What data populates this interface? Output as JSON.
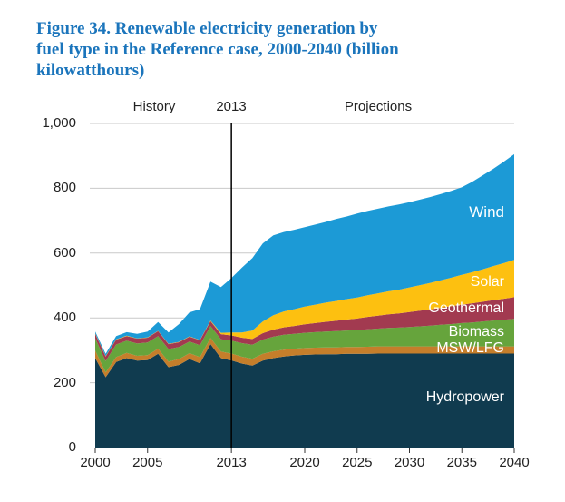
{
  "title_lines": [
    "Figure 34. Renewable electricity generation by",
    "fuel type in the Reference case, 2000-2040 (billion",
    "kilowatthours)"
  ],
  "header_labels": {
    "history": "History",
    "divider_year": "2013",
    "projections": "Projections"
  },
  "colors": {
    "title_blue": "#1b75bc",
    "gridline": "#c9c9c9",
    "axis": "#333333",
    "divider_line": "#000000",
    "label_text": "#222222",
    "area_label_text": "#ffffff"
  },
  "chart_data": {
    "type": "area",
    "stacked": true,
    "title": "Renewable electricity generation by fuel type in the Reference case, 2000-2040",
    "units": "billion kilowatthours",
    "xlim": [
      2000,
      2040
    ],
    "ylim": [
      0,
      1000
    ],
    "grid": "horizontal",
    "annotation_line_x": 2013,
    "x_ticks": [
      2000,
      2005,
      2013,
      2020,
      2025,
      2030,
      2035,
      2040
    ],
    "x_tick_labels": [
      "2000",
      "2005",
      "2013",
      "2020",
      "2025",
      "2030",
      "2035",
      "2040"
    ],
    "y_ticks": [
      0,
      200,
      400,
      600,
      800,
      1000
    ],
    "y_tick_labels": [
      "0",
      "200",
      "400",
      "600",
      "800",
      "1,000"
    ],
    "x": [
      2000,
      2001,
      2002,
      2003,
      2004,
      2005,
      2006,
      2007,
      2008,
      2009,
      2010,
      2011,
      2012,
      2013,
      2014,
      2015,
      2016,
      2017,
      2018,
      2019,
      2020,
      2021,
      2022,
      2023,
      2024,
      2025,
      2026,
      2027,
      2028,
      2029,
      2030,
      2031,
      2032,
      2033,
      2034,
      2035,
      2036,
      2037,
      2038,
      2039,
      2040
    ],
    "series": [
      {
        "name": "Hydropower",
        "color": "#103b4f",
        "values": [
          276,
          217,
          264,
          276,
          268,
          270,
          289,
          248,
          255,
          273,
          260,
          319,
          276,
          269,
          259,
          253,
          268,
          276,
          281,
          284,
          286,
          287,
          288,
          288,
          289,
          289,
          289,
          290,
          290,
          290,
          290,
          290,
          290,
          290,
          290,
          290,
          290,
          290,
          290,
          290,
          290
        ]
      },
      {
        "name": "MSW/LFG",
        "color": "#c57e2b",
        "values": [
          23,
          15,
          15,
          16,
          15,
          15,
          16,
          17,
          18,
          18,
          19,
          19,
          20,
          21,
          21,
          21,
          21,
          21,
          21,
          21,
          21,
          21,
          21,
          21,
          21,
          21,
          22,
          22,
          22,
          22,
          22,
          22,
          22,
          22,
          22,
          22,
          22,
          22,
          22,
          22,
          22
        ]
      },
      {
        "name": "Biomass",
        "color": "#66a43c",
        "values": [
          38,
          35,
          39,
          38,
          38,
          39,
          39,
          39,
          37,
          36,
          37,
          37,
          38,
          40,
          42,
          43,
          44,
          45,
          46,
          46,
          47,
          48,
          49,
          50,
          51,
          52,
          54,
          55,
          57,
          58,
          60,
          62,
          64,
          67,
          69,
          72,
          74,
          77,
          80,
          82,
          85
        ]
      },
      {
        "name": "Geothermal",
        "color": "#a23a50",
        "values": [
          14,
          14,
          15,
          14,
          15,
          15,
          15,
          15,
          15,
          15,
          15,
          15,
          16,
          16,
          17,
          18,
          20,
          22,
          23,
          24,
          26,
          28,
          30,
          32,
          34,
          36,
          38,
          40,
          42,
          44,
          46,
          48,
          50,
          52,
          55,
          57,
          59,
          61,
          63,
          65,
          67
        ]
      },
      {
        "name": "Solar",
        "color": "#fdc010",
        "values": [
          1,
          1,
          1,
          1,
          1,
          1,
          1,
          1,
          1,
          1,
          1,
          2,
          4,
          9,
          16,
          26,
          36,
          44,
          49,
          52,
          55,
          57,
          59,
          61,
          63,
          65,
          67,
          69,
          71,
          73,
          76,
          79,
          82,
          85,
          88,
          92,
          96,
          100,
          105,
          110,
          115
        ]
      },
      {
        "name": "Wind",
        "color": "#1c9ad6",
        "values": [
          6,
          7,
          10,
          11,
          14,
          18,
          27,
          35,
          55,
          74,
          95,
          120,
          141,
          168,
          200,
          224,
          241,
          247,
          245,
          245,
          245,
          247,
          249,
          253,
          255,
          259,
          260,
          261,
          262,
          263,
          263,
          264,
          265,
          266,
          268,
          270,
          279,
          290,
          300,
          313,
          326
        ]
      }
    ]
  }
}
